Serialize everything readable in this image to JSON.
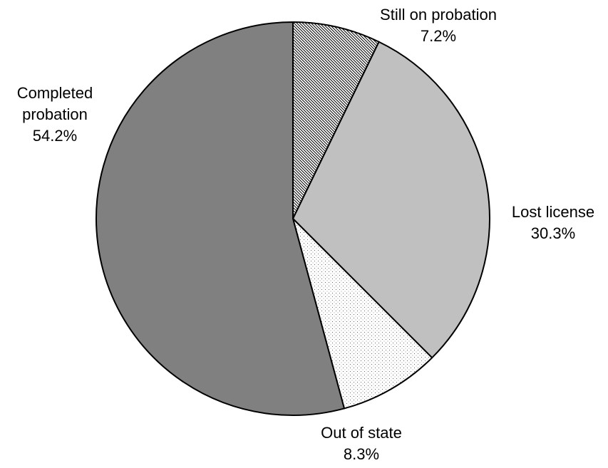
{
  "chart_data": {
    "type": "pie",
    "title": "",
    "slices": [
      {
        "label_lines": [
          "Still on probation"
        ],
        "percent_label": "7.2%",
        "value": 7.2,
        "fill": "hatch",
        "color": "#ffffff"
      },
      {
        "label_lines": [
          "Lost license"
        ],
        "percent_label": "30.3%",
        "value": 30.3,
        "fill": "solid",
        "color": "#c0c0c0"
      },
      {
        "label_lines": [
          "Out of state"
        ],
        "percent_label": "8.3%",
        "value": 8.3,
        "fill": "dots",
        "color": "#ffffff"
      },
      {
        "label_lines": [
          "Completed",
          "probation"
        ],
        "percent_label": "54.2%",
        "value": 54.2,
        "fill": "solid",
        "color": "#808080"
      }
    ],
    "stroke_color": "#000000",
    "start": "12 o'clock",
    "direction": "clockwise",
    "legend": "none"
  }
}
